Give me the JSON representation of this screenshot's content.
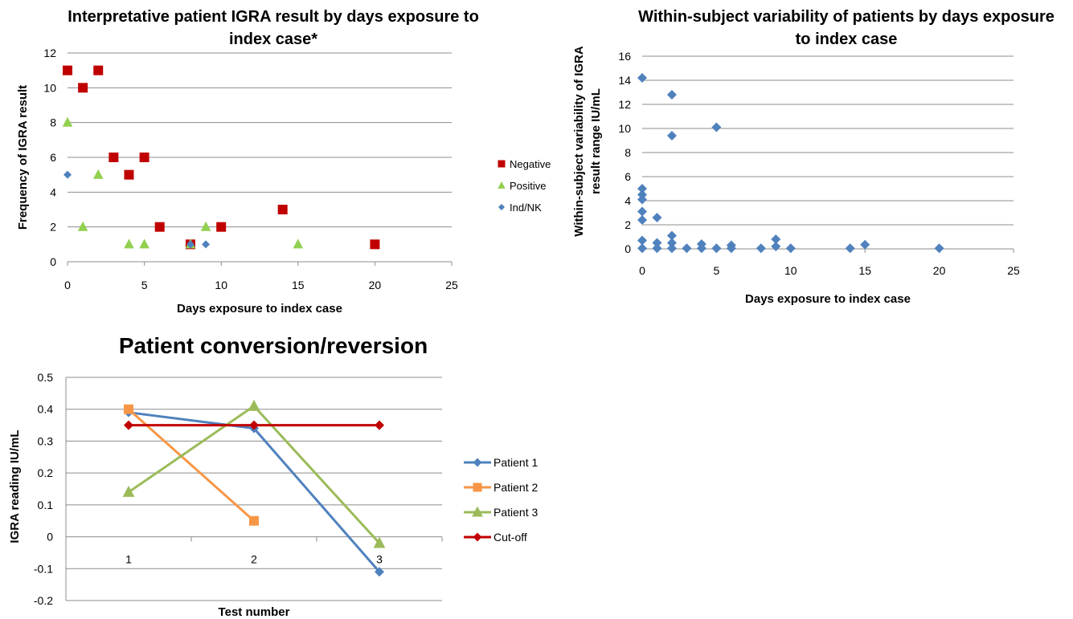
{
  "chart_data": [
    {
      "id": "c1",
      "type": "scatter",
      "title": [
        "Interpretative patient IGRA result by days exposure to",
        "index case*"
      ],
      "xlabel": "Days exposure to index case",
      "ylabel": "Frequency of IGRA result",
      "xlim": [
        0,
        25
      ],
      "ylim": [
        0,
        12
      ],
      "xticks": [
        0,
        5,
        10,
        15,
        20,
        25
      ],
      "yticks": [
        0,
        2,
        4,
        6,
        8,
        10,
        12
      ],
      "grid": "horizontal",
      "legend_position": "right",
      "series": [
        {
          "name": "Negative",
          "marker": "square",
          "color": "#C00000",
          "points": [
            [
              0,
              11
            ],
            [
              1,
              10
            ],
            [
              2,
              11
            ],
            [
              3,
              6
            ],
            [
              4,
              5
            ],
            [
              5,
              6
            ],
            [
              6,
              2
            ],
            [
              8,
              1
            ],
            [
              10,
              2
            ],
            [
              14,
              3
            ],
            [
              20,
              1
            ]
          ]
        },
        {
          "name": "Positive",
          "marker": "triangle",
          "color": "#92D050",
          "points": [
            [
              0,
              8
            ],
            [
              1,
              2
            ],
            [
              2,
              5
            ],
            [
              4,
              1
            ],
            [
              5,
              1
            ],
            [
              8,
              1
            ],
            [
              9,
              2
            ],
            [
              15,
              1
            ]
          ]
        },
        {
          "name": "Ind/NK",
          "marker": "diamond",
          "color": "#4F81BD",
          "points": [
            [
              0,
              5
            ],
            [
              8,
              1
            ],
            [
              9,
              1
            ]
          ]
        }
      ]
    },
    {
      "id": "c2",
      "type": "scatter",
      "title": [
        "Within-subject variability of patients by days exposure",
        "to index case"
      ],
      "xlabel": "Days exposure to index case",
      "ylabel": [
        "Within-subject variability of IGRA",
        "result range IU/mL"
      ],
      "xlim": [
        0,
        25
      ],
      "ylim": [
        0,
        16
      ],
      "xticks": [
        0,
        5,
        10,
        15,
        20,
        25
      ],
      "yticks": [
        0,
        2,
        4,
        6,
        8,
        10,
        12,
        14,
        16
      ],
      "grid": "horizontal",
      "series": [
        {
          "name": "",
          "marker": "diamond",
          "color": "#4F81BD",
          "points": [
            [
              0,
              14.2
            ],
            [
              0,
              5.0
            ],
            [
              0,
              4.5
            ],
            [
              0,
              4.1
            ],
            [
              0,
              3.1
            ],
            [
              0,
              2.4
            ],
            [
              0,
              0.7
            ],
            [
              0,
              0.05
            ],
            [
              1,
              2.6
            ],
            [
              1,
              0.5
            ],
            [
              1,
              0.05
            ],
            [
              2,
              12.8
            ],
            [
              2,
              9.4
            ],
            [
              2,
              1.1
            ],
            [
              2,
              0.5
            ],
            [
              2,
              0.05
            ],
            [
              3,
              0.05
            ],
            [
              4,
              0.4
            ],
            [
              4,
              0.05
            ],
            [
              5,
              10.1
            ],
            [
              5,
              0.05
            ],
            [
              6,
              0.3
            ],
            [
              6,
              0.05
            ],
            [
              8,
              0.05
            ],
            [
              9,
              0.8
            ],
            [
              9,
              0.2
            ],
            [
              10,
              0.05
            ],
            [
              14,
              0.05
            ],
            [
              15,
              0.35
            ],
            [
              20,
              0.05
            ]
          ]
        }
      ]
    },
    {
      "id": "c3",
      "type": "line",
      "title": "Patient conversion/reversion",
      "xlabel": "Test number",
      "ylabel": "IGRA reading IU/mL",
      "categories": [
        "1",
        "2",
        "3"
      ],
      "ylim": [
        -0.2,
        0.5
      ],
      "yticks": [
        -0.2,
        -0.1,
        0,
        0.1,
        0.2,
        0.3,
        0.4,
        0.5
      ],
      "grid": "horizontal",
      "legend_position": "right",
      "series": [
        {
          "name": "Patient 1",
          "marker": "diamond",
          "color": "#4F81BD",
          "values": [
            0.39,
            0.34,
            -0.11
          ]
        },
        {
          "name": "Patient 2",
          "marker": "square",
          "color": "#F79646",
          "values": [
            0.4,
            0.05,
            null
          ]
        },
        {
          "name": "Patient 3",
          "marker": "triangle",
          "color": "#9BBB59",
          "values": [
            0.14,
            0.41,
            -0.02
          ]
        },
        {
          "name": "Cut-off",
          "marker": "diamond",
          "color": "#C00000",
          "values": [
            0.35,
            0.35,
            0.35
          ]
        }
      ]
    }
  ]
}
